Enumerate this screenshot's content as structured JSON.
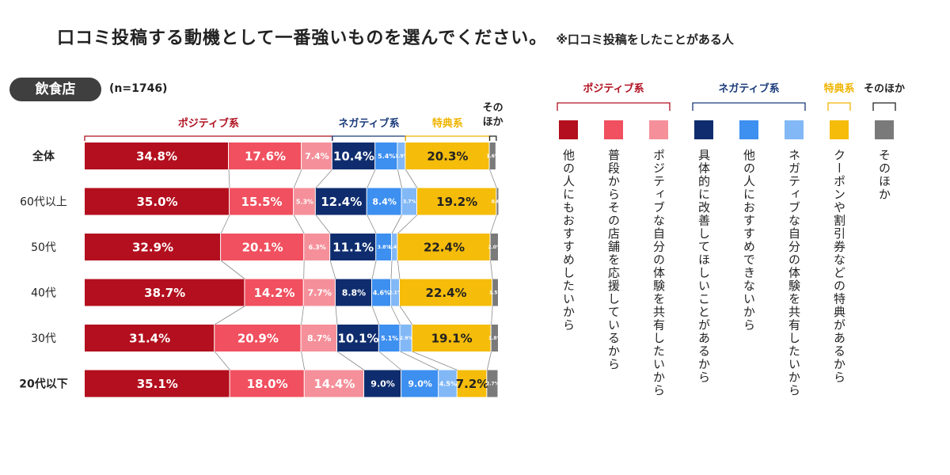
{
  "title": "口コミ投稿する動機として一番強いものを選んでください。",
  "title_note": "※口コミ投稿をしたことがある人",
  "category_badge": "飲食店",
  "sample_size": "(n=1746)",
  "groups": [
    {
      "label": "ポジティブ系",
      "color": "#b01020"
    },
    {
      "label": "ネガティブ系",
      "color": "#1a3a7a"
    },
    {
      "label": "特典系",
      "color": "#f0b400"
    },
    {
      "label": "そのほか",
      "color": "#222222"
    }
  ],
  "chart_data": {
    "type": "bar",
    "orientation": "horizontal-stacked-100",
    "categories": [
      "全体",
      "60代以上",
      "50代",
      "40代",
      "30代",
      "20代以下"
    ],
    "series": [
      {
        "name": "他の人にもおすすめしたいから",
        "color": "#b30f1e",
        "values": [
          34.8,
          35.0,
          32.9,
          38.7,
          31.4,
          35.1
        ],
        "labels": [
          "34.8%",
          "35.0%",
          "32.9%",
          "38.7%",
          "31.4%",
          "35.1%"
        ]
      },
      {
        "name": "普段からその店舗を応援しているから",
        "color": "#f0505f",
        "values": [
          17.6,
          15.5,
          20.1,
          14.2,
          20.9,
          18.0
        ],
        "labels": [
          "17.6%",
          "15.5%",
          "20.1%",
          "14.2%",
          "20.9%",
          "18.0%"
        ]
      },
      {
        "name": "ポジティブな自分の体験を共有したいから",
        "color": "#f5909a",
        "values": [
          7.4,
          5.3,
          6.3,
          7.7,
          8.7,
          14.4
        ],
        "labels": [
          "7.4%",
          "5.3%",
          "6.3%",
          "7.7%",
          "8.7%",
          "14.4%"
        ]
      },
      {
        "name": "具体的に改善してほしいことがあるから",
        "color": "#0f2d6e",
        "values": [
          10.4,
          12.4,
          11.1,
          8.8,
          10.1,
          9.0
        ],
        "labels": [
          "10.4%",
          "12.4%",
          "11.1%",
          "8.8%",
          "10.1%",
          "9.0%"
        ]
      },
      {
        "name": "他の人におすすめできないから",
        "color": "#3d8ff0",
        "values": [
          5.4,
          8.4,
          3.8,
          4.6,
          5.1,
          9.0
        ],
        "labels": [
          "5.4%",
          "8.4%",
          "3.8%",
          "4.6%",
          "5.1%",
          "9.0%"
        ]
      },
      {
        "name": "ネガティブな自分の体験を共有したいから",
        "color": "#82b8f6",
        "values": [
          1.9,
          3.7,
          1.4,
          2.1,
          2.9,
          4.5
        ],
        "labels": [
          "1.9%",
          "3.7%",
          "1.4%",
          "2.1%",
          "2.9%",
          "4.5%"
        ]
      },
      {
        "name": "クーポンや割引券などの特典があるから",
        "color": "#f5bc0a",
        "values": [
          20.3,
          19.2,
          22.4,
          22.4,
          19.1,
          7.2
        ],
        "labels": [
          "20.3%",
          "19.2%",
          "22.4%",
          "22.4%",
          "19.1%",
          "7.2%"
        ]
      },
      {
        "name": "そのほか",
        "color": "#7a7a7a",
        "values": [
          1.6,
          0.6,
          2.0,
          1.5,
          1.8,
          2.7
        ],
        "labels": [
          "1.6%",
          "0.6%",
          "2.0%",
          "1.5%",
          "1.8%",
          "2.7%"
        ]
      }
    ],
    "label_colors": [
      "#ffffff",
      "#ffffff",
      "#ffffff",
      "#ffffff",
      "#ffffff",
      "#ffffff",
      "#222222",
      "#ffffff"
    ],
    "group_spans": [
      [
        0,
        2
      ],
      [
        3,
        5
      ],
      [
        6,
        6
      ],
      [
        7,
        7
      ]
    ],
    "xlim": [
      0,
      100
    ],
    "legend_position": "right",
    "grid": false
  }
}
